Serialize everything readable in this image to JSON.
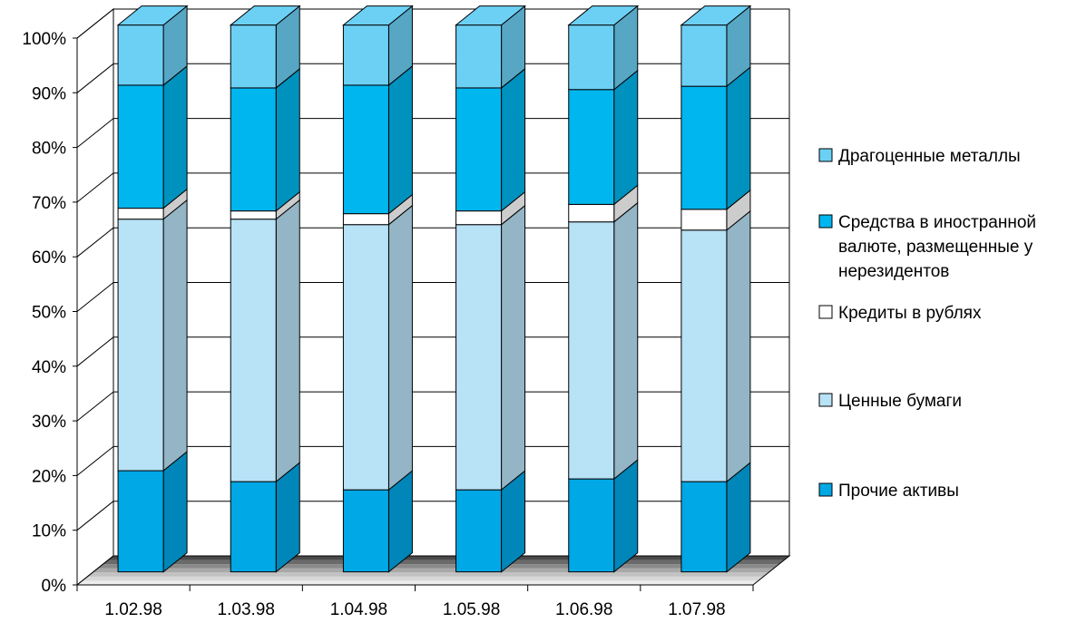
{
  "chart_data": {
    "type": "bar",
    "stacked": true,
    "percent": true,
    "three_d": true,
    "categories": [
      "1.02.98",
      "1.03.98",
      "1.04.98",
      "1.05.98",
      "1.06.98",
      "1.07.98"
    ],
    "y_ticks": [
      "0%",
      "10%",
      "20%",
      "30%",
      "40%",
      "50%",
      "60%",
      "70%",
      "80%",
      "90%",
      "100%"
    ],
    "ylim": [
      0,
      100
    ],
    "grid": true,
    "legend_position": "right",
    "series": [
      {
        "name": "Прочие активы",
        "color": "#00a8e6",
        "values": [
          18.5,
          16.5,
          15,
          15,
          17,
          16.5
        ]
      },
      {
        "name": "Ценные бумаги",
        "color": "#b8e2f6",
        "values": [
          46,
          48,
          48.5,
          48.5,
          47,
          46
        ]
      },
      {
        "name": "Кредиты в рублях",
        "color": "#ffffff",
        "values": [
          2,
          1.5,
          2,
          2.5,
          3.2,
          3.8
        ]
      },
      {
        "name": "Средства в иностранной валюте, размещенные у нерезидентов",
        "color": "#00b6ee",
        "values": [
          22.5,
          22.5,
          23.5,
          22.5,
          21,
          22.5
        ]
      },
      {
        "name": "Драгоценные металлы",
        "color": "#6cd0f5",
        "values": [
          11,
          11.5,
          11,
          11.5,
          11.8,
          11.2
        ]
      }
    ],
    "legend_order": [
      4,
      3,
      2,
      1,
      0
    ],
    "legend_lines": [
      [
        "Драгоценные металлы"
      ],
      [
        "Средства в иностранной",
        "валюте, размещенные у",
        "нерезидентов"
      ],
      [
        "Кредиты в рублях"
      ],
      [
        "Ценные бумаги"
      ],
      [
        "Прочие активы"
      ]
    ]
  }
}
